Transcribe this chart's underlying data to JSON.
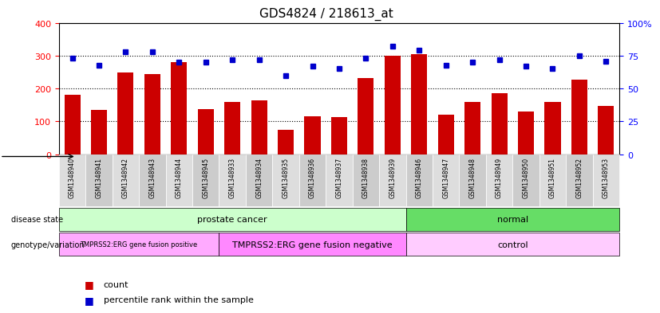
{
  "title": "GDS4824 / 218613_at",
  "samples": [
    "GSM1348940",
    "GSM1348941",
    "GSM1348942",
    "GSM1348943",
    "GSM1348944",
    "GSM1348945",
    "GSM1348933",
    "GSM1348934",
    "GSM1348935",
    "GSM1348936",
    "GSM1348937",
    "GSM1348938",
    "GSM1348939",
    "GSM1348946",
    "GSM1348947",
    "GSM1348948",
    "GSM1348949",
    "GSM1348950",
    "GSM1348951",
    "GSM1348952",
    "GSM1348953"
  ],
  "bar_values": [
    180,
    135,
    250,
    245,
    280,
    138,
    160,
    165,
    75,
    115,
    113,
    232,
    300,
    305,
    120,
    160,
    185,
    130,
    160,
    228,
    148
  ],
  "dot_values_pct": [
    73,
    68,
    78,
    78,
    70,
    70,
    72,
    72,
    60,
    67,
    65,
    73,
    82,
    79,
    68,
    70,
    72,
    67,
    65,
    75,
    71
  ],
  "bar_color": "#cc0000",
  "dot_color": "#0000cc",
  "ylim_left": [
    0,
    400
  ],
  "ylim_right": [
    0,
    100
  ],
  "yticks_left": [
    0,
    100,
    200,
    300,
    400
  ],
  "yticks_right": [
    0,
    25,
    50,
    75,
    100
  ],
  "ytick_labels_right": [
    "0",
    "25",
    "50",
    "75",
    "100%"
  ],
  "grid_values": [
    100,
    200,
    300
  ],
  "disease_state_groups": [
    {
      "label": "prostate cancer",
      "start": 0,
      "end": 13,
      "color": "#ccffcc"
    },
    {
      "label": "normal",
      "start": 13,
      "end": 21,
      "color": "#66dd66"
    }
  ],
  "genotype_groups": [
    {
      "label": "TMPRSS2:ERG gene fusion positive",
      "start": 0,
      "end": 6,
      "color": "#ffaaff"
    },
    {
      "label": "TMPRSS2:ERG gene fusion negative",
      "start": 6,
      "end": 13,
      "color": "#ff88ff"
    },
    {
      "label": "control",
      "start": 13,
      "end": 21,
      "color": "#ffccff"
    }
  ],
  "legend_count_color": "#cc0000",
  "legend_pct_color": "#0000cc",
  "bg_color": "#ffffff",
  "tick_label_bg": "#cccccc"
}
